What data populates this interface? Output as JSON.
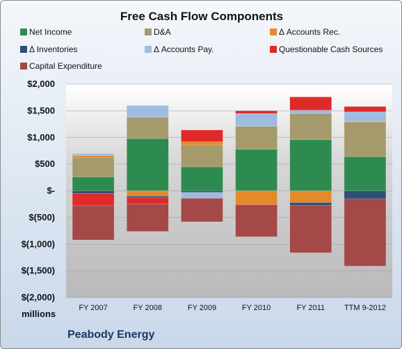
{
  "chart_data": {
    "type": "bar",
    "stacked": true,
    "title": "Free Cash Flow Components",
    "categories": [
      "FY 2007",
      "FY 2008",
      "FY 2009",
      "FY 2010",
      "FY 2011",
      "TTM 9-2012"
    ],
    "y_ticks": [
      "$2,000",
      "$1,500",
      "$1,000",
      "$500",
      "$-",
      "$(500)",
      "$(1,000)",
      "$(1,500)",
      "$(2,000)"
    ],
    "ylim": [
      -2000,
      2000
    ],
    "y_unit_label": "millions",
    "legend_position": "top",
    "series": [
      {
        "name": "Net Income",
        "color": "#2e8b50",
        "values": [
          260,
          980,
          450,
          780,
          960,
          640
        ]
      },
      {
        "name": "D&A",
        "color": "#a59a6c",
        "values": [
          360,
          400,
          410,
          430,
          490,
          650
        ]
      },
      {
        "name": "Δ Accounts Rec.",
        "color": "#e58a2a",
        "values": [
          40,
          -100,
          60,
          -260,
          -220,
          10
        ]
      },
      {
        "name": "Δ Inventories",
        "color": "#2f4f77",
        "values": [
          -50,
          -30,
          -30,
          0,
          -50,
          -150
        ]
      },
      {
        "name": "Δ Accounts Pay.",
        "color": "#9fbbe0",
        "values": [
          40,
          220,
          -110,
          240,
          60,
          180
        ]
      },
      {
        "name": "Questionable Cash Sources",
        "color": "#e02a2a",
        "values": [
          -230,
          -120,
          220,
          50,
          250,
          100
        ]
      },
      {
        "name": "Capital Expenditure",
        "color": "#a54848",
        "values": [
          -640,
          -510,
          -440,
          -600,
          -890,
          -1260
        ]
      }
    ]
  },
  "company": "Peabody Energy"
}
